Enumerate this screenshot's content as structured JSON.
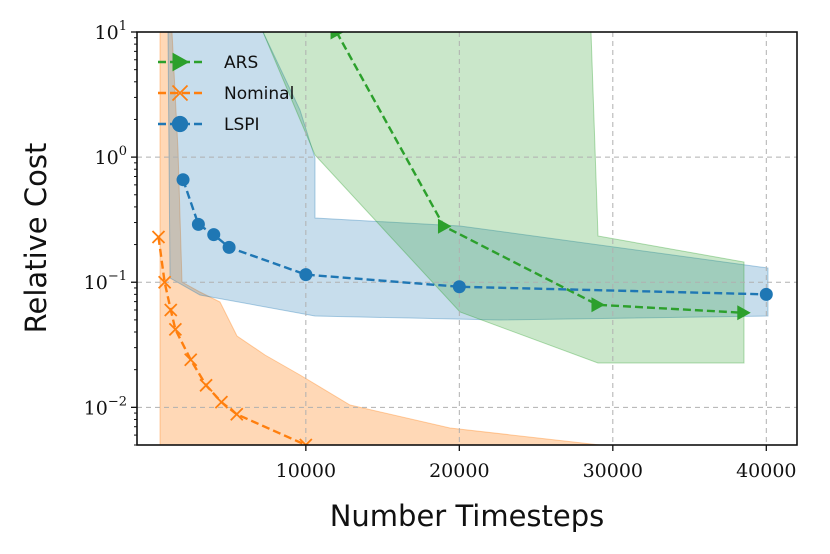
{
  "chart_data": {
    "type": "line",
    "xlabel": "Number Timesteps",
    "ylabel": "Relative Cost",
    "xlim": [
      -1000,
      42000
    ],
    "ylim": [
      0.005,
      10
    ],
    "yscale": "log",
    "grid": true,
    "legend_position": "top-left",
    "x_ticks": [
      {
        "value": 10000,
        "label": "10000"
      },
      {
        "value": 20000,
        "label": "20000"
      },
      {
        "value": 30000,
        "label": "30000"
      },
      {
        "value": 40000,
        "label": "40000"
      }
    ],
    "y_ticks": [
      {
        "value": 10,
        "base": "10",
        "exp": "1"
      },
      {
        "value": 1,
        "base": "10",
        "exp": "0"
      },
      {
        "value": 0.1,
        "base": "10",
        "exp": "−1"
      },
      {
        "value": 0.01,
        "base": "10",
        "exp": "−2"
      }
    ],
    "series": [
      {
        "name": "ARS",
        "color": "#2ca02c",
        "marker": "triangle-right",
        "x": [
          12000,
          19000,
          29000,
          38500
        ],
        "y": [
          10,
          0.28,
          0.066,
          0.057
        ],
        "band_x": [
          10000,
          12000,
          19500,
          28800,
          28800,
          38300,
          38300,
          28800,
          20000,
          10000
        ],
        "band_upper": [
          10,
          10,
          10,
          10,
          0.24,
          0.15,
          0.15,
          0.15,
          0.15,
          0.15
        ],
        "band_lower": [
          1,
          0.2,
          0.06,
          0.023,
          0.023,
          0.023,
          0.023,
          0.023,
          0.06,
          1
        ]
      },
      {
        "name": "Nominal",
        "color": "#ff7f0e",
        "marker": "x",
        "x": [
          400,
          800,
          1200,
          1500,
          2500,
          3500,
          4500,
          5500,
          10000
        ],
        "y": [
          0.23,
          0.1,
          0.06,
          0.042,
          0.024,
          0.015,
          0.011,
          0.0088,
          0.005
        ]
      },
      {
        "name": "LSPI",
        "color": "#1f77b4",
        "marker": "circle",
        "x": [
          2000,
          3000,
          4000,
          5000,
          10000,
          20000,
          40000
        ],
        "y": [
          0.66,
          0.29,
          0.24,
          0.19,
          0.115,
          0.092,
          0.08
        ]
      }
    ]
  }
}
